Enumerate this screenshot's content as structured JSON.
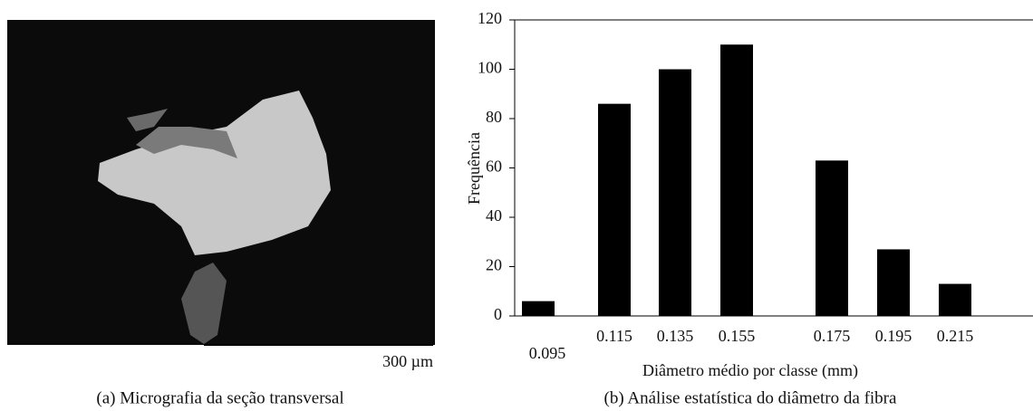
{
  "micrograph": {
    "scale_label": "300 µm",
    "caption": "(a) Micrografia da seção transversal"
  },
  "chart_data": {
    "type": "bar",
    "caption": "(b) Análise estatística do diâmetro da fibra",
    "x_label": "Diâmetro médio por classe (mm)",
    "y_label": "Frequência",
    "categories": [
      "0.095",
      "0.115",
      "0.135",
      "0.155",
      "0.175",
      "0.195",
      "0.215"
    ],
    "values": [
      6,
      86,
      100,
      110,
      63,
      27,
      13
    ],
    "color": "#000000",
    "ylim": [
      0,
      120
    ],
    "yticks": [
      0,
      20,
      40,
      60,
      80,
      100,
      120
    ],
    "grid": false
  }
}
